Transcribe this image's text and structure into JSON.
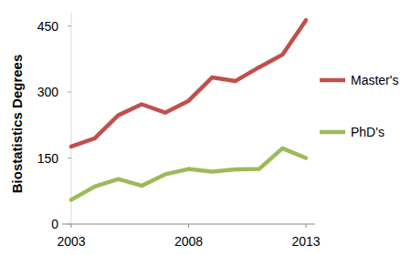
{
  "chart_data": {
    "type": "line",
    "y_label": "Biostatistics Degrees",
    "x": [
      2003,
      2004,
      2005,
      2006,
      2007,
      2008,
      2009,
      2010,
      2011,
      2012,
      2013
    ],
    "series": [
      {
        "name": "Master's",
        "color": "#c0504d",
        "values": [
          176,
          195,
          247,
          272,
          253,
          280,
          333,
          325,
          356,
          385,
          463
        ]
      },
      {
        "name": "PhD's",
        "color": "#9bbb59",
        "values": [
          55,
          85,
          102,
          87,
          113,
          125,
          119,
          124,
          125,
          172,
          150
        ]
      }
    ],
    "xlim": [
      2003,
      2013
    ],
    "xticks": [
      2003,
      2008,
      2013
    ],
    "ylim": [
      0,
      480
    ],
    "yticks": [
      0,
      150,
      300,
      450
    ],
    "grid": false,
    "legend": "right"
  }
}
